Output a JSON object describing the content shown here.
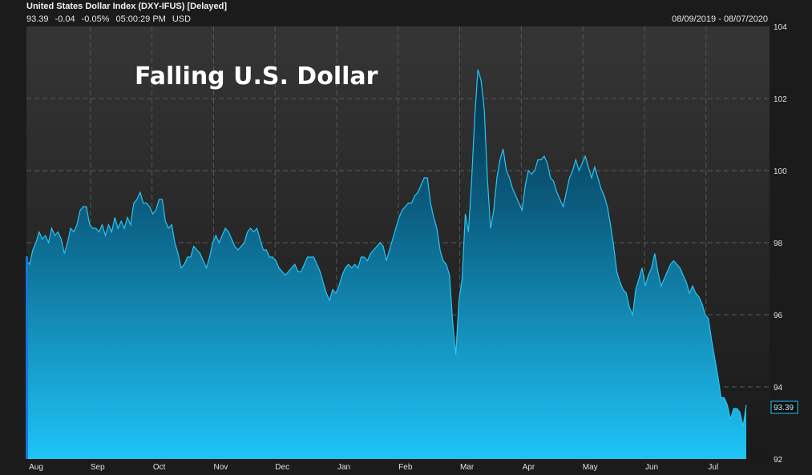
{
  "header": {
    "title": "United States Dollar Index (DXY-IFUS) [Delayed]",
    "last": "93.39",
    "change": "-0.04",
    "change_pct": "-0.05%",
    "time": "05:00:29 PM",
    "currency": "USD",
    "date_range": "08/09/2019 - 08/07/2020"
  },
  "colors": {
    "background": "#1b1b1b",
    "plot_bg_top": "#353535",
    "plot_bg_bottom": "#1a1a1a",
    "grid": "#5a5a5a",
    "line": "#29c6f5",
    "fill_top": "#052f44",
    "fill_bottom": "#1ec4f7"
  },
  "chart_data": {
    "type": "area",
    "title": "",
    "annotation": "Falling U.S. Dollar",
    "xlabel": "",
    "ylabel": "",
    "ylim": [
      92,
      104
    ],
    "yticks": [
      92,
      94,
      96,
      98,
      100,
      102,
      104
    ],
    "xticks": [
      "Aug",
      "Sep",
      "Oct",
      "Nov",
      "Dec",
      "Jan",
      "Feb",
      "Mar",
      "Apr",
      "May",
      "Jun",
      "Jul"
    ],
    "grid": true,
    "last_value_label": "93.39",
    "series": [
      {
        "values": [
          97.5,
          97.4,
          97.8,
          98.0,
          98.3,
          98.1,
          98.2,
          98.0,
          98.4,
          98.2,
          98.3,
          98.1,
          97.7,
          98.0,
          98.4,
          98.3,
          98.5,
          98.9,
          99.0,
          99.0,
          98.5,
          98.4,
          98.4,
          98.3,
          98.5,
          98.2,
          98.5,
          98.3,
          98.7,
          98.4,
          98.6,
          98.4,
          98.7,
          98.5,
          99.1,
          99.2,
          99.4,
          99.1,
          99.1,
          99.0,
          98.8,
          98.9,
          99.2,
          99.2,
          98.6,
          98.4,
          98.5,
          98.0,
          97.7,
          97.3,
          97.4,
          97.6,
          97.6,
          97.9,
          97.8,
          97.7,
          97.5,
          97.3,
          97.6,
          98.0,
          98.2,
          98.0,
          98.2,
          98.4,
          98.3,
          98.1,
          97.9,
          97.8,
          97.9,
          98.0,
          98.3,
          98.4,
          98.3,
          98.4,
          98.1,
          97.8,
          97.8,
          97.6,
          97.6,
          97.5,
          97.3,
          97.2,
          97.1,
          97.2,
          97.3,
          97.4,
          97.2,
          97.2,
          97.4,
          97.6,
          97.6,
          97.6,
          97.4,
          97.2,
          96.9,
          96.6,
          96.4,
          96.7,
          96.6,
          96.8,
          97.1,
          97.3,
          97.4,
          97.3,
          97.4,
          97.3,
          97.6,
          97.6,
          97.5,
          97.7,
          97.8,
          97.9,
          98.0,
          97.9,
          97.5,
          97.8,
          98.1,
          98.4,
          98.7,
          98.9,
          99.0,
          99.1,
          99.1,
          99.3,
          99.4,
          99.6,
          99.8,
          99.8,
          99.1,
          98.7,
          98.4,
          97.8,
          97.5,
          97.4,
          97.1,
          95.8,
          94.9,
          96.4,
          97.0,
          98.8,
          98.3,
          99.7,
          101.5,
          102.8,
          102.5,
          101.7,
          99.8,
          98.4,
          98.9,
          99.8,
          100.3,
          100.6,
          100.0,
          99.8,
          99.5,
          99.3,
          99.1,
          98.9,
          99.6,
          100.0,
          99.9,
          100.0,
          100.3,
          100.3,
          100.4,
          100.2,
          99.8,
          99.7,
          99.4,
          99.2,
          99.0,
          99.4,
          99.8,
          100.0,
          100.3,
          100.0,
          100.2,
          100.4,
          100.1,
          99.8,
          100.1,
          99.8,
          99.5,
          99.3,
          99.0,
          98.5,
          97.9,
          97.2,
          96.9,
          96.7,
          96.6,
          96.2,
          96.0,
          96.7,
          97.0,
          97.3,
          96.8,
          97.1,
          97.3,
          97.7,
          97.2,
          96.8,
          97.0,
          97.2,
          97.4,
          97.5,
          97.4,
          97.3,
          97.1,
          96.9,
          96.6,
          96.8,
          96.6,
          96.5,
          96.3,
          96.0,
          95.9,
          95.3,
          94.8,
          94.3,
          93.7,
          93.7,
          93.5,
          93.1,
          93.4,
          93.4,
          93.3,
          92.9,
          93.5
        ]
      }
    ]
  }
}
